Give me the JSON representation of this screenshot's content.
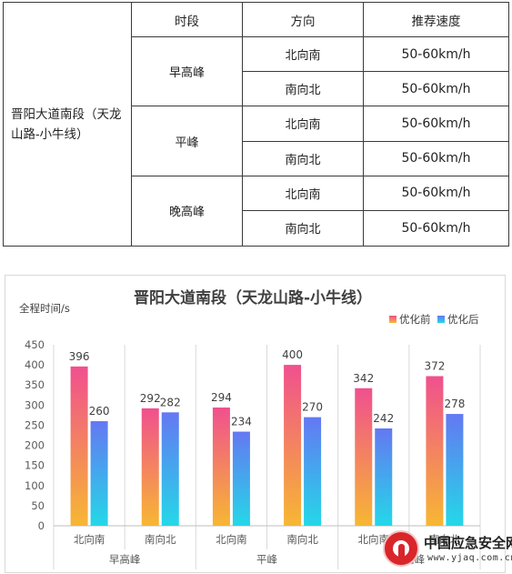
{
  "table": {
    "headers": [
      "时段",
      "方向",
      "推荐速度"
    ],
    "road": "晋阳大道南段（天龙山路-小牛线）",
    "periods": [
      {
        "name": "早高峰",
        "rows": [
          {
            "direction": "北向南",
            "speed": "50-60km/h"
          },
          {
            "direction": "南向北",
            "speed": "50-60km/h"
          }
        ]
      },
      {
        "name": "平峰",
        "rows": [
          {
            "direction": "北向南",
            "speed": "50-60km/h"
          },
          {
            "direction": "南向北",
            "speed": "50-60km/h"
          }
        ]
      },
      {
        "name": "晚高峰",
        "rows": [
          {
            "direction": "北向南",
            "speed": "50-60km/h"
          },
          {
            "direction": "南向北",
            "speed": "50-60km/h"
          }
        ]
      }
    ]
  },
  "chart_data": {
    "type": "bar",
    "title": "晋阳大道南段（天龙山路-小牛线）",
    "ylabel": "全程时间/s",
    "ylim": [
      0,
      450
    ],
    "yticks": [
      0,
      50,
      100,
      150,
      200,
      250,
      300,
      350,
      400,
      450
    ],
    "categories": [
      "北向南",
      "南向北",
      "北向南",
      "南向北",
      "北向南",
      "南向北"
    ],
    "groups": [
      {
        "label": "早高峰",
        "span": [
          0,
          1
        ]
      },
      {
        "label": "平峰",
        "span": [
          2,
          3
        ]
      },
      {
        "label": "晚高峰",
        "span": [
          4,
          5
        ]
      }
    ],
    "series": [
      {
        "name": "优化前",
        "values": [
          396,
          292,
          294,
          400,
          342,
          372
        ],
        "color_top": "#f0508e",
        "color_bottom": "#f7b733"
      },
      {
        "name": "优化后",
        "values": [
          260,
          282,
          234,
          270,
          242,
          278
        ],
        "color_top": "#6478f2",
        "color_bottom": "#24d8e8"
      }
    ],
    "legend_position": "top-right",
    "grid": false
  },
  "watermark": {
    "name": "中国应急安全网",
    "url": "www.yjaq.com.cn",
    "seal_text": "中国应急安全网"
  }
}
